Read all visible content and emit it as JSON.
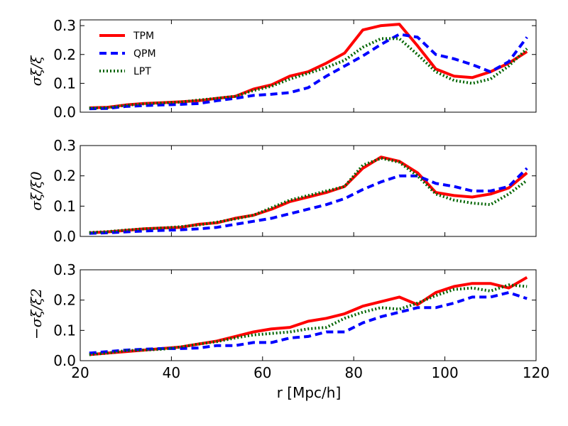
{
  "chart_data": [
    {
      "type": "line",
      "ylabel": "σξ/ξ",
      "xlim": [
        20,
        120
      ],
      "ylim": [
        0,
        0.32
      ],
      "yticks": [
        0.0,
        0.1,
        0.2,
        0.3
      ],
      "ytick_labels": [
        "0.0",
        "0.1",
        "0.2",
        "0.3"
      ],
      "legend": {
        "placement": "top-left",
        "entries": [
          "TPM",
          "QPM",
          "LPT"
        ]
      },
      "x": [
        22,
        26,
        30,
        34,
        38,
        42,
        46,
        50,
        54,
        58,
        62,
        66,
        70,
        74,
        78,
        82,
        86,
        90,
        94,
        98,
        102,
        106,
        110,
        114,
        118
      ],
      "series": [
        {
          "name": "TPM",
          "color": "#ff0000",
          "style": "solid",
          "values": [
            0.015,
            0.017,
            0.025,
            0.03,
            0.033,
            0.036,
            0.04,
            0.048,
            0.055,
            0.08,
            0.095,
            0.125,
            0.14,
            0.17,
            0.205,
            0.285,
            0.3,
            0.305,
            0.23,
            0.15,
            0.125,
            0.12,
            0.14,
            0.17,
            0.21
          ]
        },
        {
          "name": "QPM",
          "color": "#0000ff",
          "style": "dashed",
          "values": [
            0.012,
            0.013,
            0.02,
            0.023,
            0.025,
            0.027,
            0.03,
            0.04,
            0.048,
            0.058,
            0.062,
            0.068,
            0.085,
            0.125,
            0.16,
            0.195,
            0.235,
            0.27,
            0.26,
            0.2,
            0.185,
            0.165,
            0.14,
            0.175,
            0.26
          ]
        },
        {
          "name": "LPT",
          "color": "#006400",
          "style": "dotted",
          "values": [
            0.014,
            0.016,
            0.024,
            0.029,
            0.032,
            0.035,
            0.042,
            0.048,
            0.055,
            0.075,
            0.09,
            0.115,
            0.135,
            0.155,
            0.18,
            0.225,
            0.255,
            0.255,
            0.2,
            0.14,
            0.11,
            0.1,
            0.115,
            0.16,
            0.22
          ]
        }
      ]
    },
    {
      "type": "line",
      "ylabel": "σξ/ξ0",
      "xlim": [
        20,
        120
      ],
      "ylim": [
        0,
        0.3
      ],
      "yticks": [
        0.0,
        0.1,
        0.2,
        0.3
      ],
      "ytick_labels": [
        "0.0",
        "0.1",
        "0.2",
        "0.3"
      ],
      "x": [
        22,
        26,
        30,
        34,
        38,
        42,
        46,
        50,
        54,
        58,
        62,
        66,
        70,
        74,
        78,
        82,
        86,
        90,
        94,
        98,
        102,
        106,
        110,
        114,
        118
      ],
      "series": [
        {
          "name": "TPM",
          "color": "#ff0000",
          "style": "solid",
          "values": [
            0.012,
            0.015,
            0.02,
            0.025,
            0.028,
            0.03,
            0.04,
            0.045,
            0.06,
            0.07,
            0.09,
            0.115,
            0.13,
            0.145,
            0.165,
            0.225,
            0.262,
            0.248,
            0.21,
            0.145,
            0.135,
            0.13,
            0.14,
            0.16,
            0.21
          ]
        },
        {
          "name": "QPM",
          "color": "#0000ff",
          "style": "dashed",
          "values": [
            0.01,
            0.012,
            0.015,
            0.018,
            0.02,
            0.022,
            0.025,
            0.03,
            0.04,
            0.05,
            0.06,
            0.075,
            0.09,
            0.105,
            0.125,
            0.155,
            0.18,
            0.2,
            0.2,
            0.175,
            0.165,
            0.15,
            0.15,
            0.165,
            0.225
          ]
        },
        {
          "name": "LPT",
          "color": "#006400",
          "style": "dotted",
          "values": [
            0.013,
            0.016,
            0.021,
            0.025,
            0.028,
            0.032,
            0.038,
            0.047,
            0.058,
            0.07,
            0.095,
            0.12,
            0.135,
            0.15,
            0.165,
            0.235,
            0.258,
            0.245,
            0.2,
            0.14,
            0.12,
            0.11,
            0.105,
            0.14,
            0.185
          ]
        }
      ]
    },
    {
      "type": "line",
      "ylabel": "−σξ/ξ2",
      "xlabel": "r  [Mpc/h]",
      "xlim": [
        20,
        120
      ],
      "xticks": [
        20,
        40,
        60,
        80,
        100,
        120
      ],
      "xtick_labels": [
        "20",
        "40",
        "60",
        "80",
        "100",
        "120"
      ],
      "ylim": [
        0,
        0.3
      ],
      "yticks": [
        0.0,
        0.1,
        0.2,
        0.3
      ],
      "ytick_labels": [
        "0.0",
        "0.1",
        "0.2",
        "0.3"
      ],
      "x": [
        22,
        26,
        30,
        34,
        38,
        42,
        46,
        50,
        54,
        58,
        62,
        66,
        70,
        74,
        78,
        82,
        86,
        90,
        94,
        98,
        102,
        106,
        110,
        114,
        118
      ],
      "series": [
        {
          "name": "TPM",
          "color": "#ff0000",
          "style": "solid",
          "values": [
            0.02,
            0.025,
            0.03,
            0.035,
            0.04,
            0.045,
            0.055,
            0.065,
            0.08,
            0.095,
            0.105,
            0.11,
            0.13,
            0.14,
            0.155,
            0.18,
            0.195,
            0.21,
            0.185,
            0.225,
            0.245,
            0.255,
            0.255,
            0.24,
            0.275
          ]
        },
        {
          "name": "QPM",
          "color": "#0000ff",
          "style": "dashed",
          "values": [
            0.025,
            0.03,
            0.035,
            0.038,
            0.04,
            0.04,
            0.042,
            0.05,
            0.05,
            0.06,
            0.06,
            0.075,
            0.08,
            0.095,
            0.095,
            0.125,
            0.145,
            0.16,
            0.175,
            0.175,
            0.19,
            0.21,
            0.21,
            0.225,
            0.205
          ]
        },
        {
          "name": "LPT",
          "color": "#006400",
          "style": "dotted",
          "values": [
            0.02,
            0.025,
            0.033,
            0.035,
            0.038,
            0.045,
            0.055,
            0.063,
            0.075,
            0.085,
            0.09,
            0.095,
            0.105,
            0.11,
            0.14,
            0.16,
            0.175,
            0.17,
            0.19,
            0.215,
            0.235,
            0.24,
            0.23,
            0.25,
            0.245
          ]
        }
      ]
    }
  ]
}
